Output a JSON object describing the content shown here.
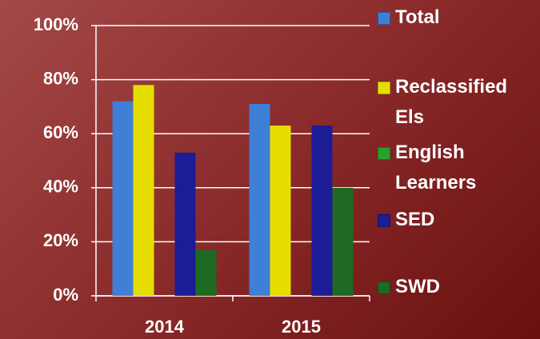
{
  "chart_data": {
    "type": "bar",
    "categories": [
      "2014",
      "2015"
    ],
    "series": [
      {
        "name": "Total",
        "color": "#3f7fd6",
        "values": [
          72,
          71
        ]
      },
      {
        "name": "Reclassified Els",
        "color": "#e6de00",
        "values": [
          78,
          63
        ]
      },
      {
        "name": "English Learners",
        "color": "#2aa02a",
        "values": [
          null,
          null
        ]
      },
      {
        "name": "SED",
        "color": "#1c1c96",
        "values": [
          53,
          63
        ]
      },
      {
        "name": "SWD",
        "color": "#1f6a22",
        "values": [
          17,
          40
        ]
      }
    ],
    "ylim": [
      0,
      100
    ],
    "yticks": [
      {
        "value": 0,
        "label": "0%"
      },
      {
        "value": 20,
        "label": "20%"
      },
      {
        "value": 40,
        "label": "40%"
      },
      {
        "value": 60,
        "label": "60%"
      },
      {
        "value": 80,
        "label": "80%"
      },
      {
        "value": 100,
        "label": "100%"
      }
    ],
    "grid": true,
    "legend": "right"
  }
}
